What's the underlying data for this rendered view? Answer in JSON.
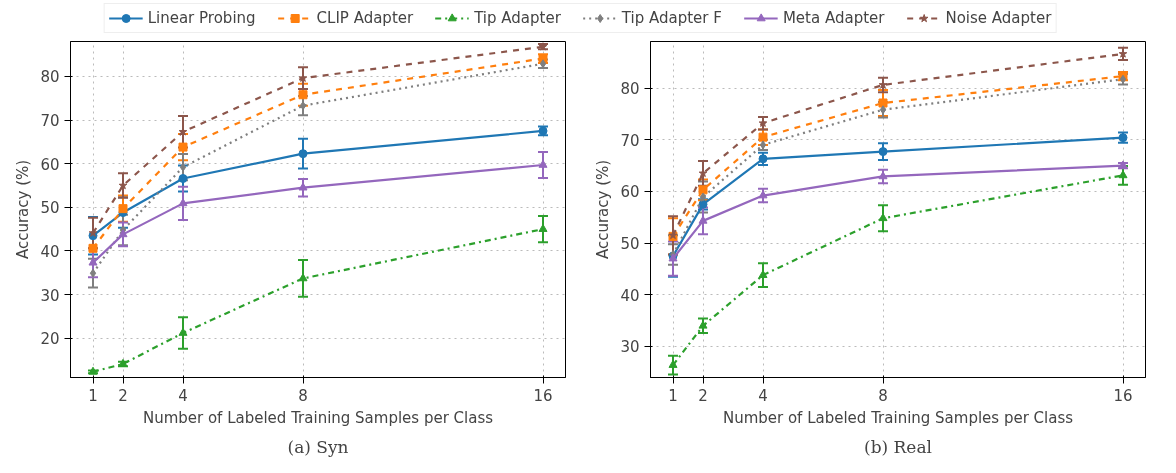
{
  "chart_data": [
    {
      "type": "line",
      "title": "(a) Syn",
      "xlabel": "Number of Labeled Training Samples per Class",
      "ylabel": "Accuracy (%)",
      "x": [
        1,
        2,
        4,
        8,
        16
      ],
      "xlim": [
        0.25,
        16.75
      ],
      "xticks": [
        1,
        2,
        4,
        8,
        16
      ],
      "ylim": [
        11,
        88
      ],
      "yticks": [
        20,
        30,
        40,
        50,
        60,
        70,
        80
      ],
      "grid": true,
      "legend": "top",
      "series": [
        {
          "name": "Linear Probing",
          "color": "#1f77b4",
          "marker": "circle",
          "line_style": "solid",
          "values": [
            43.5,
            48.8,
            56.6,
            62.3,
            67.5
          ],
          "errors": [
            4.3,
            3.5,
            3,
            3.4,
            1
          ]
        },
        {
          "name": "CLIP Adapter",
          "color": "#ff7f0e",
          "marker": "square",
          "line_style": "dashed",
          "values": [
            40.6,
            49.7,
            63.8,
            75.8,
            84.1
          ],
          "errors": [
            null,
            3,
            3,
            2.5,
            1
          ]
        },
        {
          "name": "Tip Adapter",
          "color": "#2ca02c",
          "marker": "triangle",
          "line_style": "dashdot",
          "values": [
            12.3,
            14.1,
            21.2,
            33.7,
            45.0
          ],
          "errors": [
            0.3,
            0.5,
            3.6,
            4.2,
            3
          ]
        },
        {
          "name": "Tip Adapter F",
          "color": "#7f7f7f",
          "marker": "diamond",
          "line_style": "dotted",
          "values": [
            34.9,
            44.8,
            59.2,
            73.3,
            82.9
          ],
          "errors": [
            3.3,
            3.5,
            3,
            2.2,
            1
          ]
        },
        {
          "name": "Meta Adapter",
          "color": "#9467bd",
          "marker": "triangle",
          "line_style": "solid",
          "values": [
            37.3,
            43.8,
            50.9,
            54.5,
            59.7
          ],
          "errors": [
            3.3,
            2.7,
            3.8,
            2,
            3
          ]
        },
        {
          "name": "Noise Adapter",
          "color": "#8c564b",
          "marker": "star",
          "line_style": "dashed",
          "values": [
            44.1,
            55.0,
            67.3,
            79.6,
            86.8
          ],
          "errors": [
            3.5,
            2.8,
            3.6,
            2.5,
            0.6
          ]
        }
      ]
    },
    {
      "type": "line",
      "title": "(b) Real",
      "xlabel": "Number of Labeled Training Samples per Class",
      "ylabel": "Accuracy (%)",
      "x": [
        1,
        2,
        4,
        8,
        16
      ],
      "xlim": [
        0.25,
        16.75
      ],
      "xticks": [
        1,
        2,
        4,
        8,
        16
      ],
      "ylim": [
        24,
        89
      ],
      "yticks": [
        30,
        40,
        50,
        60,
        70,
        80
      ],
      "grid": true,
      "legend": false,
      "series": [
        {
          "color": "#1f77b4",
          "marker": "circle",
          "line_style": "solid",
          "values": [
            47.5,
            57.5,
            66.3,
            67.7,
            70.4
          ],
          "errors": [
            4,
            1,
            1.2,
            1.6,
            1
          ]
        },
        {
          "color": "#ff7f0e",
          "marker": "square",
          "line_style": "dashed",
          "values": [
            51.3,
            60.3,
            70.5,
            77.1,
            82.3
          ],
          "errors": [
            3.5,
            2,
            1.5,
            2.5,
            0.8
          ]
        },
        {
          "color": "#2ca02c",
          "marker": "triangle",
          "line_style": "dashdot",
          "values": [
            26.4,
            34.0,
            43.8,
            54.8,
            63.1
          ],
          "errors": [
            1.8,
            1.4,
            2.3,
            2.5,
            1.8
          ]
        },
        {
          "color": "#7f7f7f",
          "marker": "diamond",
          "line_style": "dotted",
          "values": [
            47.8,
            58.9,
            69.0,
            75.8,
            81.7
          ],
          "errors": [
            2,
            3,
            1,
            1.5,
            1
          ]
        },
        {
          "color": "#9467bd",
          "marker": "triangle",
          "line_style": "solid",
          "values": [
            47.0,
            54.3,
            59.2,
            62.9,
            65.0
          ],
          "errors": [
            3.3,
            2.6,
            1.3,
            1.3,
            0.5
          ]
        },
        {
          "color": "#8c564b",
          "marker": "star",
          "line_style": "dashed",
          "values": [
            51.5,
            63.5,
            73.2,
            80.6,
            86.6
          ],
          "errors": [
            3.7,
            2.4,
            1.2,
            1.4,
            1.2
          ]
        }
      ]
    }
  ]
}
